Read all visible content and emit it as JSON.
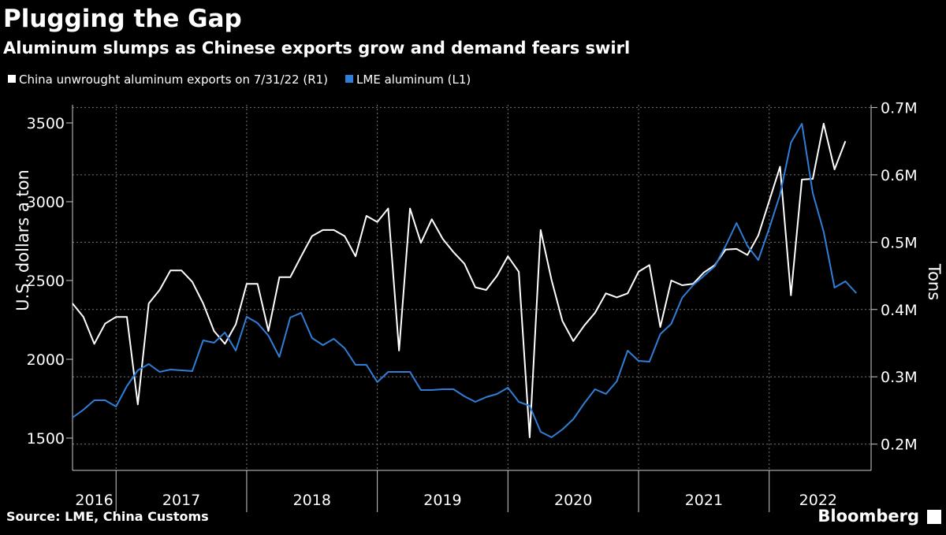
{
  "chart_data": {
    "type": "line",
    "title": "Plugging the Gap",
    "subtitle": "Aluminum slumps as Chinese exports grow and demand fears swirl",
    "y_label": "U.S. dollars a ton",
    "y2_label": "Tons",
    "source": "Source: LME, China Customs",
    "brand": "Bloomberg",
    "x": [
      "2016-08",
      "2016-09",
      "2016-10",
      "2016-11",
      "2016-12",
      "2017-01",
      "2017-02",
      "2017-03",
      "2017-04",
      "2017-05",
      "2017-06",
      "2017-07",
      "2017-08",
      "2017-09",
      "2017-10",
      "2017-11",
      "2017-12",
      "2018-01",
      "2018-02",
      "2018-03",
      "2018-04",
      "2018-05",
      "2018-06",
      "2018-07",
      "2018-08",
      "2018-09",
      "2018-10",
      "2018-11",
      "2018-12",
      "2019-01",
      "2019-02",
      "2019-03",
      "2019-04",
      "2019-05",
      "2019-06",
      "2019-07",
      "2019-08",
      "2019-09",
      "2019-10",
      "2019-11",
      "2019-12",
      "2020-01",
      "2020-02",
      "2020-03",
      "2020-04",
      "2020-05",
      "2020-06",
      "2020-07",
      "2020-08",
      "2020-09",
      "2020-10",
      "2020-11",
      "2020-12",
      "2021-01",
      "2021-02",
      "2021-03",
      "2021-04",
      "2021-05",
      "2021-06",
      "2021-07",
      "2021-08",
      "2021-09",
      "2021-10",
      "2021-11",
      "2021-12",
      "2022-01",
      "2022-02",
      "2022-03",
      "2022-04",
      "2022-05",
      "2022-06",
      "2022-07",
      "2022-08"
    ],
    "xlim": [
      "2016-08",
      "2022-09"
    ],
    "xticks": [
      2016,
      2017,
      2018,
      2019,
      2020,
      2021,
      2022
    ],
    "ylim": [
      1295,
      3615
    ],
    "yticks": [
      1500,
      2000,
      2500,
      3000,
      3500
    ],
    "y2lim": [
      161000,
      704000
    ],
    "y2ticks": [
      {
        "value": 200000,
        "label": "0.2M"
      },
      {
        "value": 300000,
        "label": "0.3M"
      },
      {
        "value": 400000,
        "label": "0.4M"
      },
      {
        "value": 500000,
        "label": "0.5M"
      },
      {
        "value": 600000,
        "label": "0.6M"
      },
      {
        "value": 700000,
        "label": "0.7M"
      }
    ],
    "grid": true,
    "series": [
      {
        "name": "China unwrought aluminum exports on 7/31/22 (R1)",
        "color": "#ffffff",
        "axis": "y2",
        "values": [
          409000,
          389000,
          349000,
          379000,
          389000,
          389000,
          259000,
          409000,
          429000,
          458000,
          458000,
          441000,
          409000,
          368000,
          349000,
          378000,
          438000,
          438000,
          368000,
          448000,
          448000,
          479000,
          509000,
          518000,
          518000,
          509000,
          479000,
          539000,
          530000,
          550000,
          339000,
          550000,
          499000,
          534000,
          505000,
          485000,
          468000,
          433000,
          429000,
          450000,
          479000,
          456000,
          210000,
          518000,
          444000,
          383000,
          353000,
          376000,
          395000,
          424000,
          418000,
          424000,
          456000,
          466000,
          374000,
          443000,
          436000,
          438000,
          455000,
          466000,
          489000,
          490000,
          481000,
          510000,
          561000,
          612000,
          421000,
          593000,
          594000,
          676000,
          608000,
          650000,
          null
        ]
      },
      {
        "name": "LME aluminum (L1)",
        "color": "#2f7ed8",
        "axis": "y",
        "values": [
          1630,
          1680,
          1740,
          1740,
          1700,
          1830,
          1930,
          1970,
          1920,
          1935,
          1930,
          1925,
          2120,
          2105,
          2170,
          2055,
          2270,
          2230,
          2150,
          2015,
          2265,
          2295,
          2135,
          2090,
          2130,
          2070,
          1965,
          1965,
          1855,
          1920,
          1920,
          1920,
          1805,
          1805,
          1810,
          1810,
          1765,
          1730,
          1760,
          1780,
          1820,
          1730,
          1705,
          1540,
          1505,
          1555,
          1620,
          1720,
          1810,
          1780,
          1860,
          2055,
          1990,
          1985,
          2160,
          2225,
          2390,
          2470,
          2530,
          2590,
          2720,
          2865,
          2720,
          2630,
          2830,
          3045,
          3375,
          3495,
          3055,
          2810,
          2455,
          2495,
          2420
        ]
      }
    ]
  }
}
